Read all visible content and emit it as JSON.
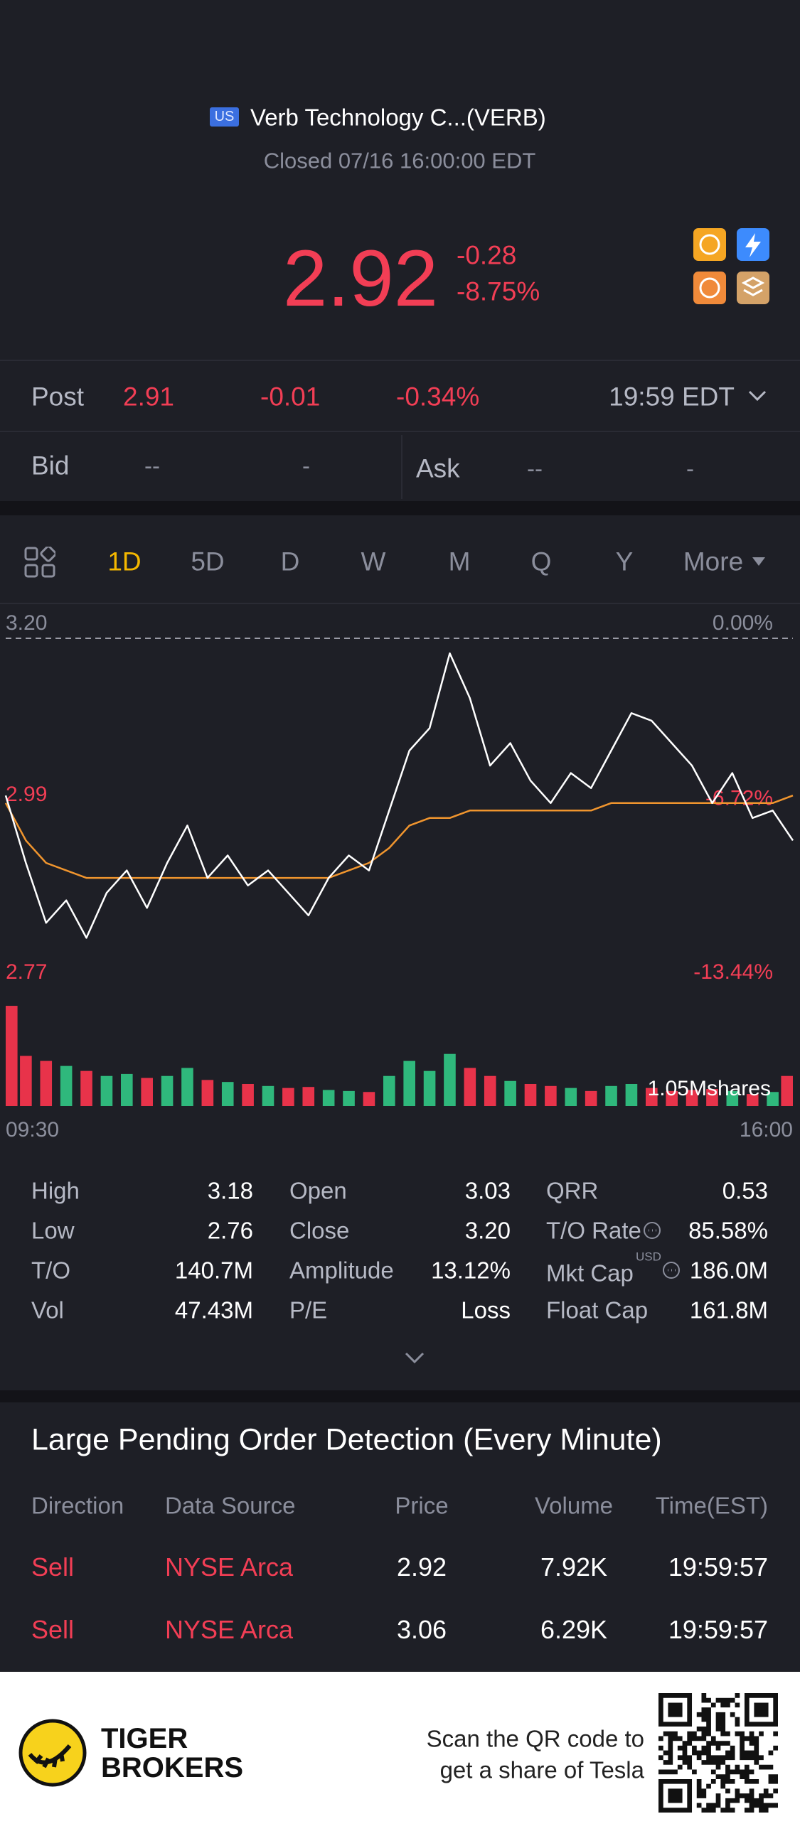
{
  "header": {
    "market": "US",
    "name": "Verb Technology C...(VERB)",
    "status": "Closed 07/16 16:00:00 EDT"
  },
  "quote": {
    "price": "2.92",
    "change": "-0.28",
    "change_percent": "-8.75%"
  },
  "post_market": {
    "label": "Post",
    "price": "2.91",
    "change": "-0.01",
    "change_percent": "-0.34%",
    "time": "19:59 EDT"
  },
  "bid_ask": {
    "bid_label": "Bid",
    "bid_price": "--",
    "bid_size": "-",
    "ask_label": "Ask",
    "ask_price": "--",
    "ask_size": "-"
  },
  "tabs": [
    "1D",
    "5D",
    "D",
    "W",
    "M",
    "Q",
    "Y",
    "More"
  ],
  "chart_data": [
    {
      "type": "line",
      "categories": [
        "09:30",
        null,
        null,
        null,
        null,
        null,
        null,
        null,
        null,
        null,
        null,
        null,
        null,
        null,
        null,
        null,
        null,
        null,
        null,
        null,
        null,
        null,
        null,
        null,
        null,
        null,
        null,
        null,
        null,
        null,
        null,
        null,
        null,
        null,
        null,
        null,
        null,
        null,
        null,
        "16:00"
      ],
      "series": [
        {
          "color": "#f0952e",
          "values": [
            2.98,
            2.93,
            2.9,
            2.89,
            2.88,
            2.88,
            2.88,
            2.88,
            2.88,
            2.88,
            2.88,
            2.88,
            2.88,
            2.88,
            2.88,
            2.88,
            2.88,
            2.89,
            2.9,
            2.92,
            2.95,
            2.96,
            2.96,
            2.97,
            2.97,
            2.97,
            2.97,
            2.97,
            2.97,
            2.97,
            2.98,
            2.98,
            2.98,
            2.98,
            2.98,
            2.98,
            2.98,
            2.98,
            2.98,
            2.99
          ]
        },
        {
          "color": "#ffffff",
          "values": [
            2.99,
            2.9,
            2.82,
            2.85,
            2.8,
            2.86,
            2.89,
            2.84,
            2.9,
            2.95,
            2.88,
            2.91,
            2.87,
            2.89,
            2.86,
            2.83,
            2.88,
            2.91,
            2.89,
            2.97,
            3.05,
            3.08,
            3.18,
            3.12,
            3.03,
            3.06,
            3.01,
            2.98,
            3.02,
            3.0,
            3.05,
            3.1,
            3.09,
            3.06,
            3.03,
            2.98,
            3.02,
            2.96,
            2.97,
            2.93
          ]
        }
      ],
      "ylim": [
        2.77,
        3.2
      ],
      "yticks": [
        {
          "value": 3.2,
          "label": "3.20"
        },
        2.99,
        2.77
      ],
      "y2lim": [
        -13.44,
        0
      ],
      "y2ticks": [
        {
          "value": 0,
          "label": "0.00%"
        },
        {
          "value": -6.72,
          "label": "-6.72%"
        },
        {
          "value": -13.44,
          "label": "-13.44%"
        }
      ]
    },
    {
      "type": "bar",
      "values": [
        1000000,
        500000,
        450000,
        400000,
        350000,
        300000,
        320000,
        280000,
        300000,
        380000,
        260000,
        240000,
        220000,
        200000,
        180000,
        190000,
        160000,
        150000,
        140000,
        300000,
        450000,
        350000,
        520000,
        380000,
        300000,
        250000,
        220000,
        200000,
        180000,
        150000,
        200000,
        220000,
        180000,
        150000,
        160000,
        170000,
        150000,
        120000,
        140000,
        300000
      ],
      "ylim": [
        0,
        1050000
      ],
      "yticks": [
        {
          "value": 1050000,
          "label": "1.05Mshares"
        }
      ],
      "up_color": "#2fb87c",
      "down_color": "#e8334a"
    }
  ],
  "stats": [
    [
      {
        "label": "High",
        "value": "3.18"
      },
      {
        "label": "Open",
        "value": "3.03"
      },
      {
        "label": "QRR",
        "value": "0.53"
      }
    ],
    [
      {
        "label": "Low",
        "value": "2.76"
      },
      {
        "label": "Close",
        "value": "3.20"
      },
      {
        "label": "T/O Rate",
        "value": "85.58%"
      }
    ],
    [
      {
        "label": "T/O",
        "value": "140.7M"
      },
      {
        "label": "Amplitude",
        "value": "13.12%"
      },
      {
        "label": "Mkt Cap",
        "value": "186.0M",
        "currency": "USD"
      }
    ],
    [
      {
        "label": "Vol",
        "value": "47.43M"
      },
      {
        "label": "P/E",
        "value": "Loss"
      },
      {
        "label": "Float Cap",
        "value": "161.8M"
      }
    ]
  ],
  "pending_orders": {
    "title": "Large Pending Order Detection (Every Minute)",
    "columns": [
      "Direction",
      "Data Source",
      "Price",
      "Volume",
      "Time(EST)"
    ],
    "rows": [
      [
        "Sell",
        "NYSE Arca",
        "2.92",
        "7.92K",
        "19:59:57"
      ],
      [
        "Sell",
        "NYSE Arca",
        "3.06",
        "6.29K",
        "19:59:57"
      ]
    ]
  },
  "footer": {
    "brand": [
      "TIGER",
      "BROKERS"
    ],
    "promo": [
      "Scan the QR code to",
      "get a share of Tesla"
    ]
  }
}
